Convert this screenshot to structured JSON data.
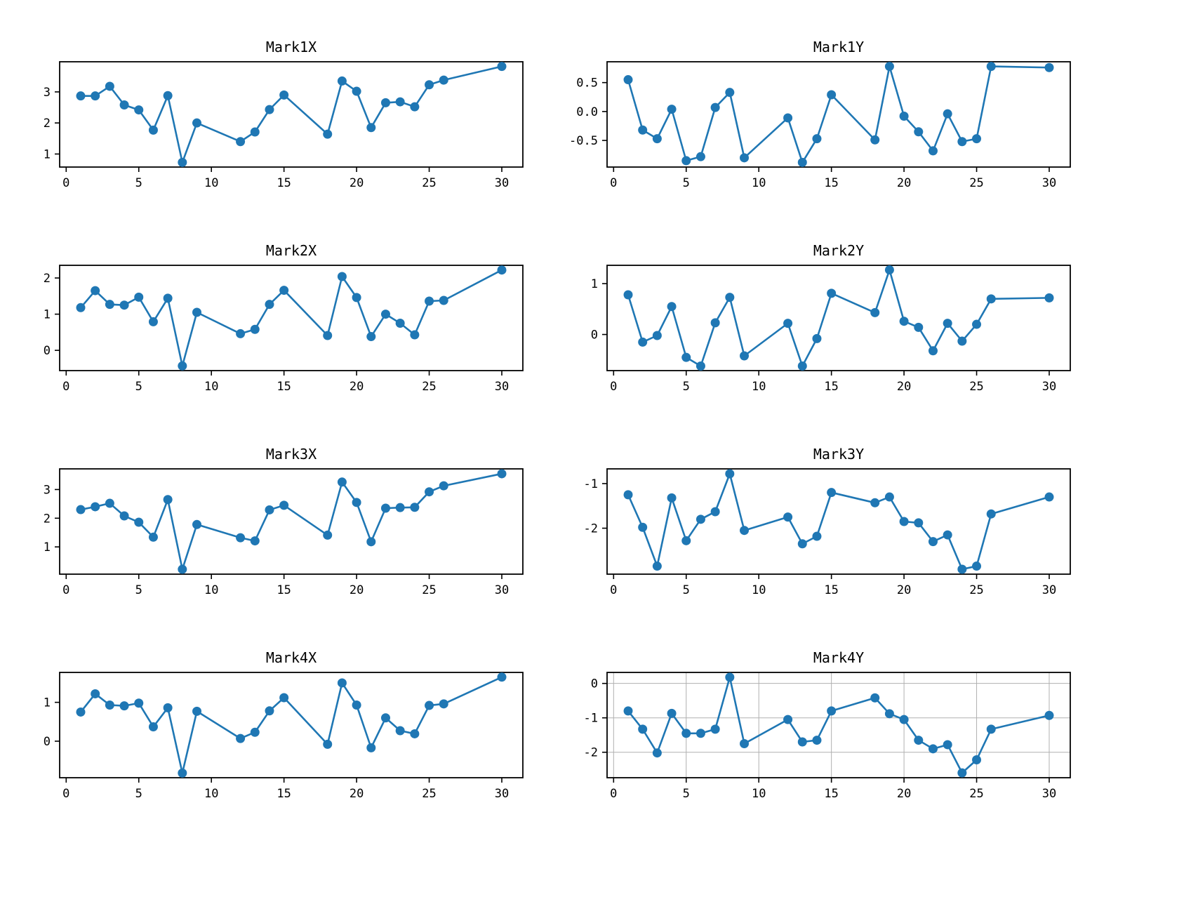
{
  "figure": {
    "background": "#ffffff",
    "accent_color": "#1f77b4",
    "grid_color": "#b0b0b0",
    "axis_color": "#000000"
  },
  "chart_data": [
    {
      "id": "mark1x",
      "type": "line",
      "title": "Mark1X",
      "x": [
        1,
        2,
        3,
        4,
        5,
        6,
        7,
        8,
        9,
        12,
        13,
        14,
        15,
        18,
        19,
        20,
        21,
        22,
        23,
        24,
        25,
        26,
        30
      ],
      "y": [
        2.87,
        2.87,
        3.18,
        2.58,
        2.42,
        1.77,
        2.88,
        0.73,
        2.0,
        1.4,
        1.71,
        2.43,
        2.9,
        1.64,
        3.35,
        3.02,
        1.85,
        2.65,
        2.68,
        2.52,
        3.23,
        3.38,
        3.82
      ],
      "xlim": [
        -0.45,
        31.45
      ],
      "ylim": [
        0.58,
        3.97
      ],
      "xticks": [
        0,
        5,
        10,
        15,
        20,
        25,
        30
      ],
      "xtick_labels": [
        "0",
        "5",
        "10",
        "15",
        "20",
        "25",
        "30"
      ],
      "yticks": [
        1,
        2,
        3
      ],
      "ytick_labels": [
        "1",
        "2",
        "3"
      ],
      "grid": false,
      "line_color": "#1f77b4",
      "marker": "o",
      "legend": "none"
    },
    {
      "id": "mark1y",
      "type": "line",
      "title": "Mark1Y",
      "x": [
        1,
        2,
        3,
        4,
        5,
        6,
        7,
        8,
        9,
        12,
        13,
        14,
        15,
        18,
        19,
        20,
        21,
        22,
        23,
        24,
        25,
        26,
        30
      ],
      "y": [
        0.55,
        -0.32,
        -0.47,
        0.04,
        -0.85,
        -0.78,
        0.07,
        0.33,
        -0.8,
        -0.11,
        -0.88,
        -0.47,
        0.29,
        -0.49,
        0.78,
        -0.08,
        -0.35,
        -0.68,
        -0.04,
        -0.52,
        -0.47,
        0.78,
        0.76
      ],
      "xlim": [
        -0.45,
        31.45
      ],
      "ylim": [
        -0.96,
        0.86
      ],
      "xticks": [
        0,
        5,
        10,
        15,
        20,
        25,
        30
      ],
      "xtick_labels": [
        "0",
        "5",
        "10",
        "15",
        "20",
        "25",
        "30"
      ],
      "yticks": [
        -0.5,
        0.0,
        0.5
      ],
      "ytick_labels": [
        "-0.5",
        "0.0",
        "0.5"
      ],
      "grid": false,
      "line_color": "#1f77b4",
      "marker": "o",
      "legend": "none"
    },
    {
      "id": "mark2x",
      "type": "line",
      "title": "Mark2X",
      "x": [
        1,
        2,
        3,
        4,
        5,
        6,
        7,
        8,
        9,
        12,
        13,
        14,
        15,
        18,
        19,
        20,
        21,
        22,
        23,
        24,
        25,
        26,
        30
      ],
      "y": [
        1.18,
        1.65,
        1.27,
        1.25,
        1.47,
        0.79,
        1.44,
        -0.43,
        1.05,
        0.46,
        0.58,
        1.27,
        1.66,
        0.41,
        2.04,
        1.46,
        0.38,
        1.0,
        0.75,
        0.43,
        1.36,
        1.38,
        2.22
      ],
      "xlim": [
        -0.45,
        31.45
      ],
      "ylim": [
        -0.56,
        2.35
      ],
      "xticks": [
        0,
        5,
        10,
        15,
        20,
        25,
        30
      ],
      "xtick_labels": [
        "0",
        "5",
        "10",
        "15",
        "20",
        "25",
        "30"
      ],
      "yticks": [
        0,
        1,
        2
      ],
      "ytick_labels": [
        "0",
        "1",
        "2"
      ],
      "grid": false,
      "line_color": "#1f77b4",
      "marker": "o",
      "legend": "none"
    },
    {
      "id": "mark2y",
      "type": "line",
      "title": "Mark2Y",
      "x": [
        1,
        2,
        3,
        4,
        5,
        6,
        7,
        8,
        9,
        12,
        13,
        14,
        15,
        18,
        19,
        20,
        21,
        22,
        23,
        24,
        25,
        26,
        30
      ],
      "y": [
        0.78,
        -0.15,
        -0.02,
        0.55,
        -0.45,
        -0.62,
        0.23,
        0.73,
        -0.42,
        0.22,
        -0.62,
        -0.08,
        0.81,
        0.43,
        1.27,
        0.26,
        0.14,
        -0.32,
        0.22,
        -0.13,
        0.2,
        0.7,
        0.72
      ],
      "xlim": [
        -0.45,
        31.45
      ],
      "ylim": [
        -0.71,
        1.36
      ],
      "xticks": [
        0,
        5,
        10,
        15,
        20,
        25,
        30
      ],
      "xtick_labels": [
        "0",
        "5",
        "10",
        "15",
        "20",
        "25",
        "30"
      ],
      "yticks": [
        0,
        1
      ],
      "ytick_labels": [
        "0",
        "1"
      ],
      "grid": false,
      "line_color": "#1f77b4",
      "marker": "o",
      "legend": "none"
    },
    {
      "id": "mark3x",
      "type": "line",
      "title": "Mark3X",
      "x": [
        1,
        2,
        3,
        4,
        5,
        6,
        7,
        8,
        9,
        12,
        13,
        14,
        15,
        18,
        19,
        20,
        21,
        22,
        23,
        24,
        25,
        26,
        30
      ],
      "y": [
        2.3,
        2.4,
        2.52,
        2.08,
        1.86,
        1.34,
        2.65,
        0.22,
        1.78,
        1.32,
        1.21,
        2.29,
        2.45,
        1.41,
        3.26,
        2.55,
        1.18,
        2.35,
        2.37,
        2.38,
        2.92,
        3.13,
        3.55
      ],
      "xlim": [
        -0.45,
        31.45
      ],
      "ylim": [
        0.05,
        3.72
      ],
      "xticks": [
        0,
        5,
        10,
        15,
        20,
        25,
        30
      ],
      "xtick_labels": [
        "0",
        "5",
        "10",
        "15",
        "20",
        "25",
        "30"
      ],
      "yticks": [
        1,
        2,
        3
      ],
      "ytick_labels": [
        "1",
        "2",
        "3"
      ],
      "grid": false,
      "line_color": "#1f77b4",
      "marker": "o",
      "legend": "none"
    },
    {
      "id": "mark3y",
      "type": "line",
      "title": "Mark3Y",
      "x": [
        1,
        2,
        3,
        4,
        5,
        6,
        7,
        8,
        9,
        12,
        13,
        14,
        15,
        18,
        19,
        20,
        21,
        22,
        23,
        24,
        25,
        26,
        30
      ],
      "y": [
        -1.25,
        -1.98,
        -2.85,
        -1.32,
        -2.28,
        -1.8,
        -1.63,
        -0.78,
        -2.05,
        -1.75,
        -2.35,
        -2.18,
        -1.2,
        -1.43,
        -1.3,
        -1.85,
        -1.88,
        -2.3,
        -2.15,
        -2.92,
        -2.85,
        -1.68,
        -1.3
      ],
      "xlim": [
        -0.45,
        31.45
      ],
      "ylim": [
        -3.03,
        -0.67
      ],
      "xticks": [
        0,
        5,
        10,
        15,
        20,
        25,
        30
      ],
      "xtick_labels": [
        "0",
        "5",
        "10",
        "15",
        "20",
        "25",
        "30"
      ],
      "yticks": [
        -2,
        -1
      ],
      "ytick_labels": [
        "-2",
        "-1"
      ],
      "grid": false,
      "line_color": "#1f77b4",
      "marker": "o",
      "legend": "none"
    },
    {
      "id": "mark4x",
      "type": "line",
      "title": "Mark4X",
      "x": [
        1,
        2,
        3,
        4,
        5,
        6,
        7,
        8,
        9,
        12,
        13,
        14,
        15,
        18,
        19,
        20,
        21,
        22,
        23,
        24,
        25,
        26,
        30
      ],
      "y": [
        0.75,
        1.22,
        0.93,
        0.91,
        0.98,
        0.37,
        0.86,
        -0.82,
        0.77,
        0.07,
        0.23,
        0.78,
        1.12,
        -0.08,
        1.5,
        0.93,
        -0.17,
        0.6,
        0.27,
        0.19,
        0.92,
        0.96,
        1.65
      ],
      "xlim": [
        -0.45,
        31.45
      ],
      "ylim": [
        -0.94,
        1.77
      ],
      "xticks": [
        0,
        5,
        10,
        15,
        20,
        25,
        30
      ],
      "xtick_labels": [
        "0",
        "5",
        "10",
        "15",
        "20",
        "25",
        "30"
      ],
      "yticks": [
        0,
        1
      ],
      "ytick_labels": [
        "0",
        "1"
      ],
      "grid": false,
      "line_color": "#1f77b4",
      "marker": "o",
      "legend": "none"
    },
    {
      "id": "mark4y",
      "type": "line",
      "title": "Mark4Y",
      "x": [
        1,
        2,
        3,
        4,
        5,
        6,
        7,
        8,
        9,
        12,
        13,
        14,
        15,
        18,
        19,
        20,
        21,
        22,
        23,
        24,
        25,
        26,
        30
      ],
      "y": [
        -0.8,
        -1.33,
        -2.02,
        -0.87,
        -1.45,
        -1.45,
        -1.33,
        0.18,
        -1.75,
        -1.05,
        -1.7,
        -1.65,
        -0.8,
        -0.42,
        -0.88,
        -1.05,
        -1.65,
        -1.9,
        -1.78,
        -2.6,
        -2.22,
        -1.33,
        -0.93
      ],
      "xlim": [
        -0.45,
        31.45
      ],
      "ylim": [
        -2.74,
        0.32
      ],
      "xticks": [
        0,
        5,
        10,
        15,
        20,
        25,
        30
      ],
      "xtick_labels": [
        "0",
        "5",
        "10",
        "15",
        "20",
        "25",
        "30"
      ],
      "yticks": [
        -2,
        -1,
        0
      ],
      "ytick_labels": [
        "-2",
        "-1",
        "0"
      ],
      "grid": true,
      "line_color": "#1f77b4",
      "marker": "o",
      "legend": "none"
    }
  ]
}
